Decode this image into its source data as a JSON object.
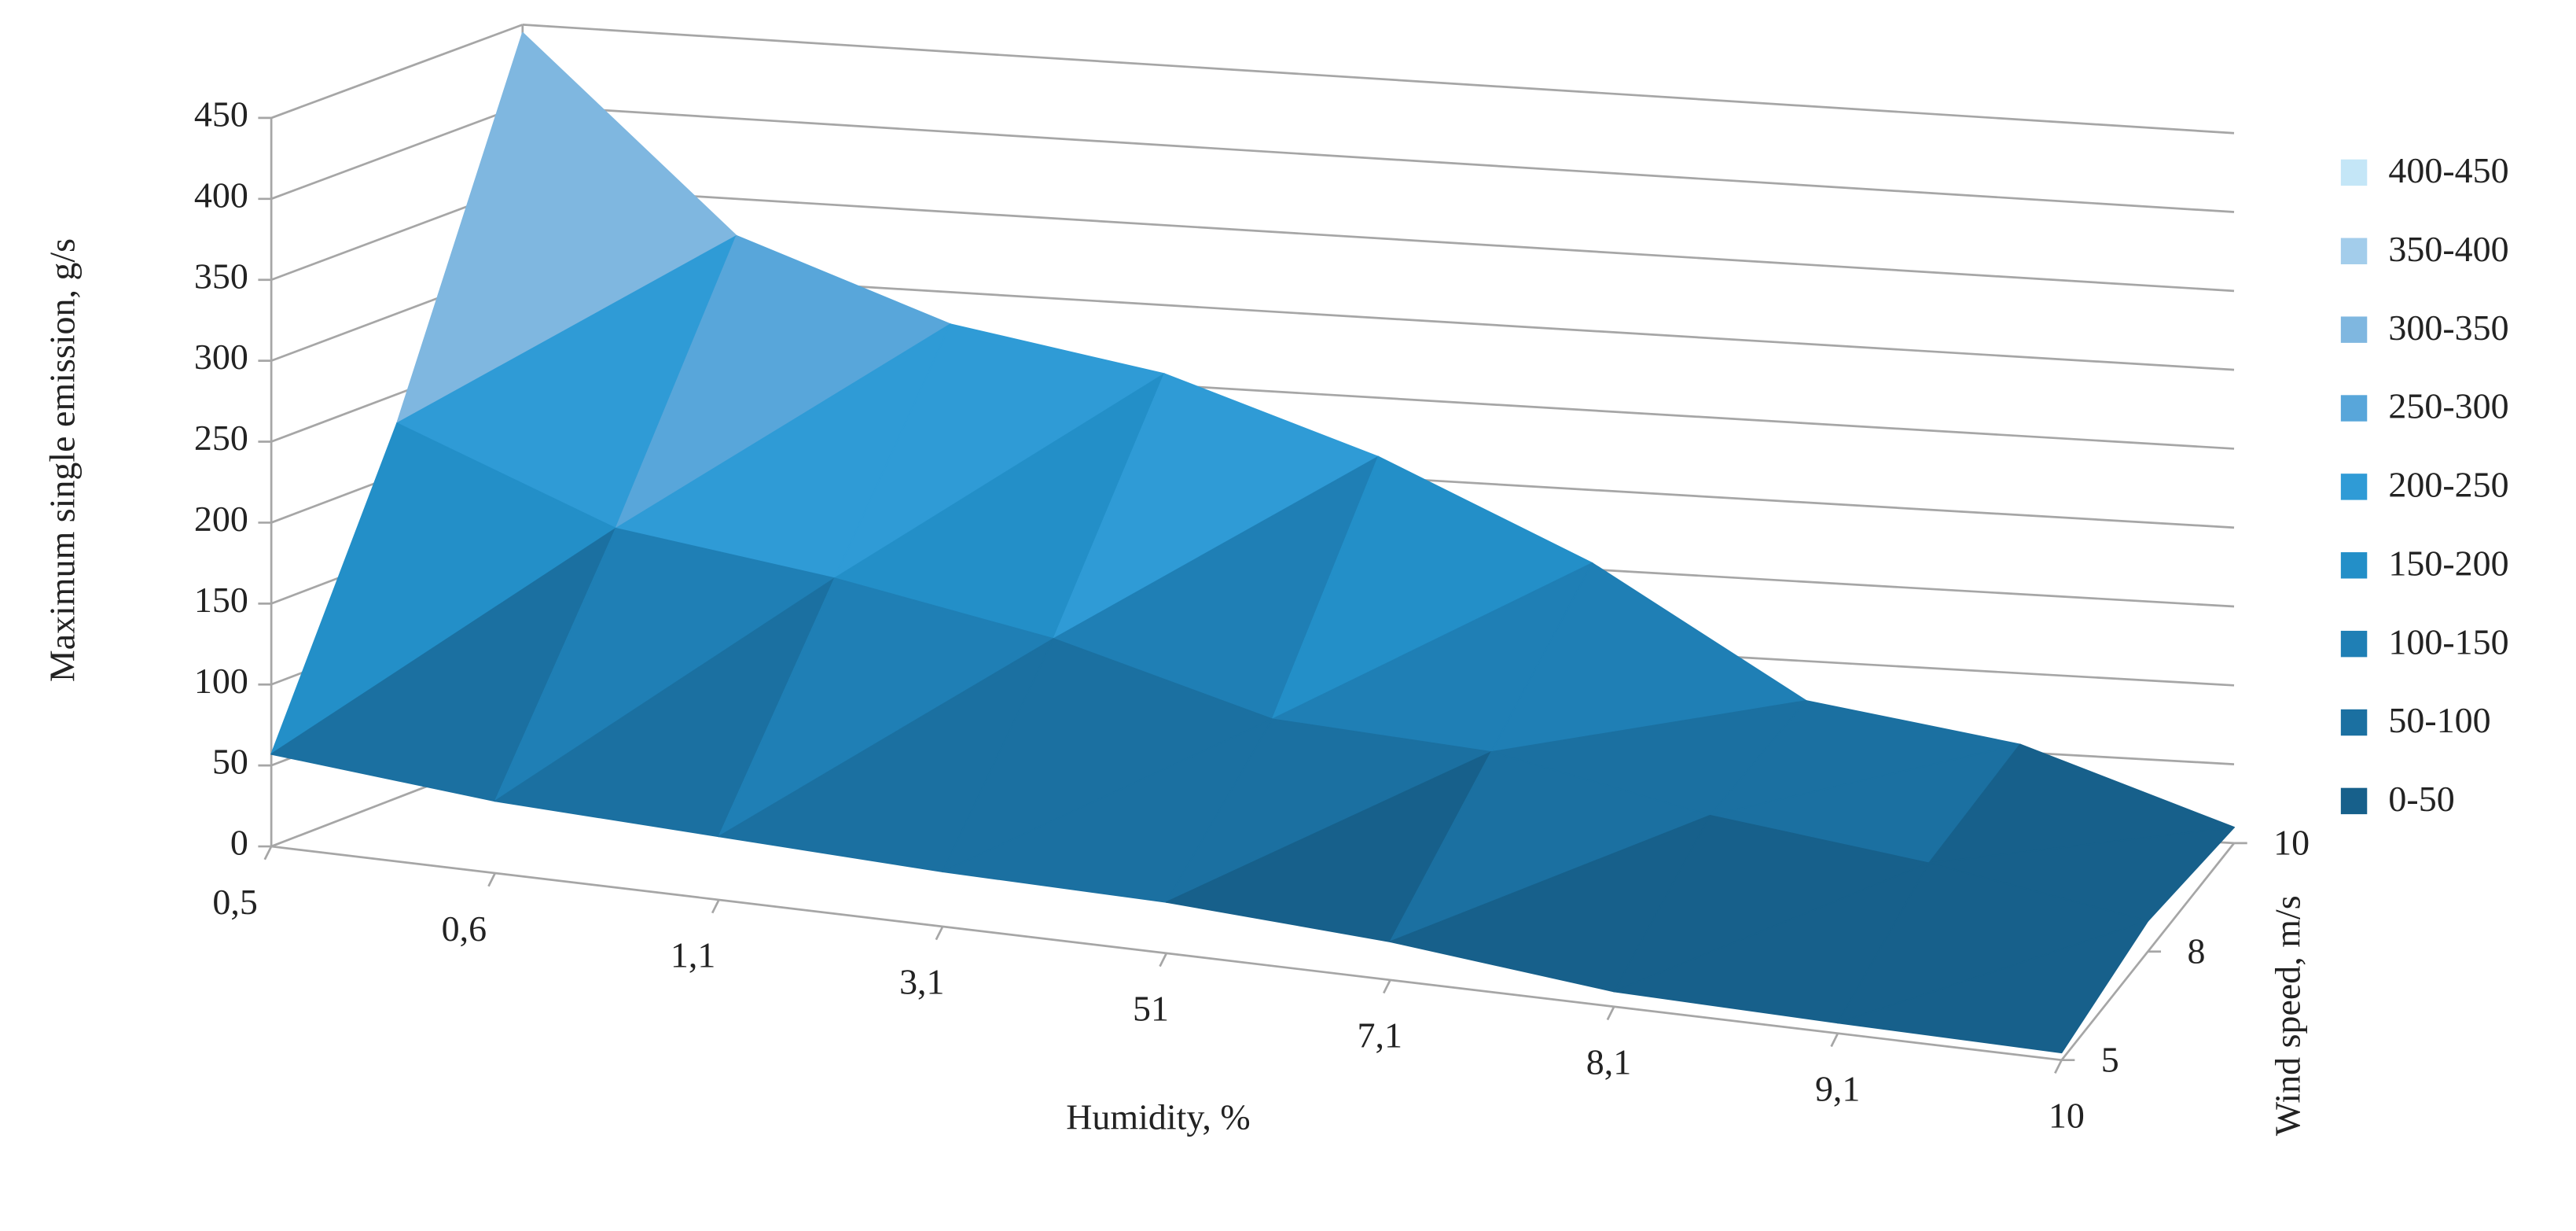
{
  "chart_data": {
    "type": "surface",
    "y_axis_title": "Maximum single emission, g/s",
    "x_axis_title": "Humidity, %",
    "z_axis_title": "Wind speed, m/s",
    "categories": [
      "0,5",
      "0,6",
      "1,1",
      "3,1",
      "51",
      "7,1",
      "8,1",
      "9,1",
      "10"
    ],
    "series": [
      {
        "name": "5",
        "values": [
          57,
          45,
          40,
          35,
          33,
          25,
          10,
          7,
          5
        ]
      },
      {
        "name": "8",
        "values": [
          232,
          180,
          162,
          137,
          99,
          91,
          63,
          45,
          20
        ]
      },
      {
        "name": "10",
        "values": [
          445,
          327,
          280,
          257,
          213,
          154,
          75,
          55,
          10
        ]
      }
    ],
    "ylim": [
      0,
      450
    ],
    "yticks": [
      0,
      50,
      100,
      150,
      200,
      250,
      300,
      350,
      400,
      450
    ],
    "grid": true,
    "legend_position": "right",
    "legend": [
      "400-450",
      "350-400",
      "300-350",
      "250-300",
      "200-250",
      "150-200",
      "100-150",
      "50-100",
      "0-50"
    ],
    "band_colors": [
      "#c4e6f7",
      "#a3cdeb",
      "#7fb7e0",
      "#58a6da",
      "#2f9bd6",
      "#238fc8",
      "#1f7fb5",
      "#1b70a1",
      "#17608b"
    ]
  }
}
